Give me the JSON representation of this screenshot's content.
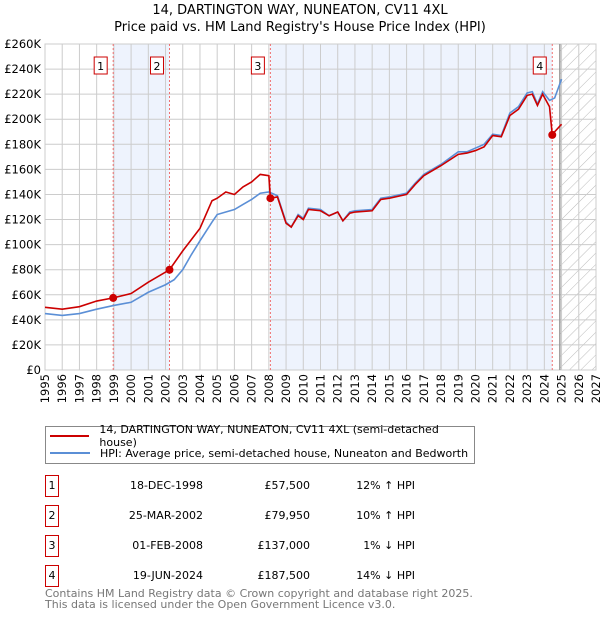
{
  "chart_data": {
    "type": "line",
    "title": "14, DARTINGTON WAY, NUNEATON, CV11 4XL",
    "subtitle": "Price paid vs. HM Land Registry's House Price Index (HPI)",
    "xlim": [
      1995,
      2027
    ],
    "ylim": [
      0,
      260000
    ],
    "x_ticks": [
      "1995",
      "1996",
      "1997",
      "1998",
      "1999",
      "2000",
      "2001",
      "2002",
      "2003",
      "2004",
      "2005",
      "2006",
      "2007",
      "2008",
      "2009",
      "2010",
      "2011",
      "2012",
      "2013",
      "2014",
      "2015",
      "2016",
      "2017",
      "2018",
      "2019",
      "2020",
      "2021",
      "2022",
      "2023",
      "2024",
      "2025",
      "2026",
      "2027"
    ],
    "y_ticks": [
      "£0",
      "£20K",
      "£40K",
      "£60K",
      "£80K",
      "£100K",
      "£120K",
      "£140K",
      "£160K",
      "£180K",
      "£200K",
      "£220K",
      "£240K",
      "£260K"
    ],
    "grid": true,
    "forecast_start": 2024.9,
    "series": [
      {
        "name": "14, DARTINGTON WAY, NUNEATON, CV11 4XL (semi-detached house)",
        "color": "#cc0000",
        "x": [
          1995,
          1996,
          1997,
          1998,
          1998.96,
          2000,
          2001,
          2002.23,
          2003,
          2003.5,
          2004,
          2004.7,
          2005,
          2005.5,
          2006,
          2006.5,
          2007,
          2007.5,
          2008.0,
          2008.09,
          2008.5,
          2009,
          2009.3,
          2009.7,
          2010,
          2010.3,
          2011,
          2011.5,
          2012,
          2012.3,
          2012.7,
          2013,
          2014,
          2014.5,
          2015,
          2016,
          2016.5,
          2017,
          2018,
          2019,
          2019.5,
          2020,
          2020.5,
          2021,
          2021.5,
          2022,
          2022.5,
          2023,
          2023.3,
          2023.6,
          2023.9,
          2024.3,
          2024.46,
          2024.6,
          2025
        ],
        "y": [
          50000,
          48500,
          50500,
          55000,
          57500,
          61000,
          70000,
          79950,
          95000,
          104000,
          113000,
          135000,
          137000,
          142000,
          140000,
          146000,
          150000,
          156000,
          155000,
          137000,
          138000,
          117000,
          114000,
          123000,
          120000,
          128000,
          127000,
          123000,
          126000,
          119000,
          125000,
          126000,
          127000,
          136000,
          137000,
          140000,
          148000,
          155000,
          163000,
          172000,
          173000,
          175000,
          178000,
          187000,
          186000,
          203000,
          208000,
          219000,
          220000,
          211000,
          220000,
          210000,
          187500,
          190000,
          196000
        ]
      },
      {
        "name": "HPI: Average price, semi-detached house, Nuneaton and Bedworth",
        "color": "#5b8fd6",
        "x": [
          1995,
          1996,
          1997,
          1998,
          1999,
          2000,
          2001,
          2002,
          2002.5,
          2003,
          2003.5,
          2004,
          2004.7,
          2005,
          2005.5,
          2006,
          2006.5,
          2007,
          2007.5,
          2008,
          2008.5,
          2009,
          2009.3,
          2009.7,
          2010,
          2010.3,
          2011,
          2011.5,
          2012,
          2012.3,
          2012.7,
          2013,
          2014,
          2014.5,
          2015,
          2016,
          2016.5,
          2017,
          2018,
          2019,
          2019.5,
          2020,
          2020.5,
          2021,
          2021.5,
          2022,
          2022.5,
          2023,
          2023.3,
          2023.6,
          2023.9,
          2024.3,
          2024.6,
          2025
        ],
        "y": [
          45000,
          43500,
          45000,
          48500,
          51500,
          54000,
          62000,
          68000,
          72000,
          80000,
          92000,
          103000,
          118000,
          124000,
          126000,
          128000,
          132000,
          136000,
          141000,
          142000,
          139000,
          118000,
          114000,
          124000,
          121000,
          129000,
          128000,
          123000,
          126000,
          119000,
          126000,
          127000,
          128000,
          137000,
          138000,
          141000,
          149000,
          156000,
          164000,
          174000,
          174000,
          177000,
          180000,
          188000,
          187000,
          205000,
          210000,
          221000,
          222000,
          212000,
          222000,
          215000,
          217000,
          232000
        ]
      }
    ],
    "sales": [
      {
        "label": "1",
        "date": "18-DEC-1998",
        "x": 1998.96,
        "price": "£57,500",
        "value": 57500,
        "hpi": "12% ↑ HPI"
      },
      {
        "label": "2",
        "date": "25-MAR-2002",
        "x": 2002.23,
        "price": "£79,950",
        "value": 79950,
        "hpi": "10% ↑ HPI"
      },
      {
        "label": "3",
        "date": "01-FEB-2008",
        "x": 2008.09,
        "price": "£137,000",
        "value": 137000,
        "hpi": "1% ↓ HPI"
      },
      {
        "label": "4",
        "date": "19-JUN-2024",
        "x": 2024.46,
        "price": "£187,500",
        "value": 187500,
        "hpi": "14% ↓ HPI"
      }
    ]
  },
  "footer": {
    "line1": "Contains HM Land Registry data © Crown copyright and database right 2025.",
    "line2": "This data is licensed under the Open Government Licence v3.0."
  }
}
